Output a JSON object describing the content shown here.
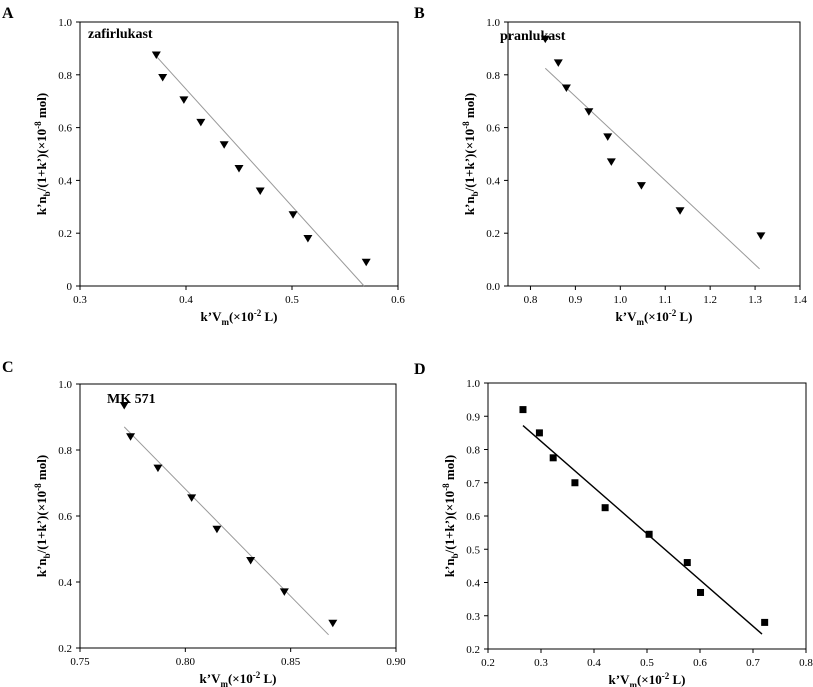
{
  "chart_data": [
    {
      "panel": "A",
      "type": "scatter",
      "title": "zafirlukast",
      "xlabel": "k’V",
      "xlabel_sub": "m",
      "xlabel_tail": "(×10",
      "xlabel_sup": "-2",
      "xlabel_end": " L)",
      "ylabel": "k’n",
      "ylabel_sub": "b",
      "ylabel_tail": "/(1+k’)(×10",
      "ylabel_sup": "-8",
      "ylabel_end": " mol)",
      "xlim": [
        0.3,
        0.6
      ],
      "ylim": [
        0.0,
        1.0
      ],
      "xticks": [
        "0.3",
        "0.4",
        "0.5",
        "0.6"
      ],
      "yticks": [
        "0",
        "0.2",
        "0.4",
        "0.6",
        "0.8",
        "1.0"
      ],
      "marker": "triangle-down",
      "fit_color": "#999999",
      "points": [
        {
          "x": 0.372,
          "y": 0.875
        },
        {
          "x": 0.378,
          "y": 0.79
        },
        {
          "x": 0.398,
          "y": 0.705
        },
        {
          "x": 0.414,
          "y": 0.62
        },
        {
          "x": 0.436,
          "y": 0.535
        },
        {
          "x": 0.45,
          "y": 0.445
        },
        {
          "x": 0.47,
          "y": 0.36
        },
        {
          "x": 0.501,
          "y": 0.27
        },
        {
          "x": 0.515,
          "y": 0.18
        },
        {
          "x": 0.57,
          "y": 0.09
        }
      ],
      "fit_line": [
        {
          "x": 0.372,
          "y": 0.87
        },
        {
          "x": 0.568,
          "y": 0.0
        }
      ]
    },
    {
      "panel": "B",
      "type": "scatter",
      "title": "pranlukast",
      "xlabel": "k’V",
      "xlabel_sub": "m",
      "xlabel_tail": "(×10",
      "xlabel_sup": "-2",
      "xlabel_end": " L)",
      "ylabel": "k’n",
      "ylabel_sub": "b",
      "ylabel_tail": "/(1+k’)(×10",
      "ylabel_sup": "-8",
      "ylabel_end": " mol)",
      "xlim": [
        0.75,
        1.4
      ],
      "ylim": [
        0.0,
        1.0
      ],
      "xticks": [
        "0.8",
        "0.9",
        "1.0",
        "1.1",
        "1.2",
        "1.3",
        "1.4"
      ],
      "yticks": [
        "0.0",
        "0.2",
        "0.4",
        "0.6",
        "0.8",
        "1.0"
      ],
      "marker": "triangle-down",
      "fit_color": "#999999",
      "points": [
        {
          "x": 0.833,
          "y": 0.935
        },
        {
          "x": 0.862,
          "y": 0.845
        },
        {
          "x": 0.88,
          "y": 0.75
        },
        {
          "x": 0.93,
          "y": 0.66
        },
        {
          "x": 0.972,
          "y": 0.565
        },
        {
          "x": 0.98,
          "y": 0.47
        },
        {
          "x": 1.047,
          "y": 0.38
        },
        {
          "x": 1.133,
          "y": 0.285
        },
        {
          "x": 1.313,
          "y": 0.19
        }
      ],
      "fit_line": [
        {
          "x": 0.833,
          "y": 0.825
        },
        {
          "x": 1.31,
          "y": 0.065
        }
      ]
    },
    {
      "panel": "C",
      "type": "scatter",
      "title": "MK 571",
      "xlabel": "k’V",
      "xlabel_sub": "m",
      "xlabel_tail": "(×10",
      "xlabel_sup": "-2",
      "xlabel_end": " L)",
      "ylabel": "k’n",
      "ylabel_sub": "b",
      "ylabel_tail": "/(1+k’)(×10",
      "ylabel_sup": "-8",
      "ylabel_end": " mol)",
      "xlim": [
        0.75,
        0.9
      ],
      "ylim": [
        0.2,
        1.0
      ],
      "xticks": [
        "0.75",
        "0.80",
        "0.85",
        "0.90"
      ],
      "yticks": [
        "0.2",
        "0.4",
        "0.6",
        "0.8",
        "1.0"
      ],
      "marker": "triangle-down",
      "fit_color": "#999999",
      "points": [
        {
          "x": 0.771,
          "y": 0.935
        },
        {
          "x": 0.774,
          "y": 0.84
        },
        {
          "x": 0.787,
          "y": 0.745
        },
        {
          "x": 0.803,
          "y": 0.655
        },
        {
          "x": 0.815,
          "y": 0.56
        },
        {
          "x": 0.831,
          "y": 0.465
        },
        {
          "x": 0.847,
          "y": 0.37
        },
        {
          "x": 0.87,
          "y": 0.275
        }
      ],
      "fit_line": [
        {
          "x": 0.771,
          "y": 0.87
        },
        {
          "x": 0.868,
          "y": 0.24
        }
      ]
    },
    {
      "panel": "D",
      "type": "scatter",
      "title": "",
      "xlabel": "k’V",
      "xlabel_sub": "m",
      "xlabel_tail": "(×10",
      "xlabel_sup": "-2",
      "xlabel_end": " L)",
      "ylabel": "k’n",
      "ylabel_sub": "b",
      "ylabel_tail": "/(1+k’)(×10",
      "ylabel_sup": "-8",
      "ylabel_end": " mol)",
      "xlim": [
        0.2,
        0.8
      ],
      "ylim": [
        0.2,
        1.0
      ],
      "xticks": [
        "0.2",
        "0.3",
        "0.4",
        "0.5",
        "0.6",
        "0.7",
        "0.8"
      ],
      "yticks": [
        "0.2",
        "0.3",
        "0.4",
        "0.5",
        "0.6",
        "0.7",
        "0.8",
        "0.9",
        "1.0"
      ],
      "marker": "square",
      "fit_color": "#000000",
      "points": [
        {
          "x": 0.266,
          "y": 0.92
        },
        {
          "x": 0.297,
          "y": 0.85
        },
        {
          "x": 0.323,
          "y": 0.775
        },
        {
          "x": 0.364,
          "y": 0.7
        },
        {
          "x": 0.421,
          "y": 0.625
        },
        {
          "x": 0.504,
          "y": 0.545
        },
        {
          "x": 0.576,
          "y": 0.46
        },
        {
          "x": 0.601,
          "y": 0.37
        },
        {
          "x": 0.722,
          "y": 0.28
        }
      ],
      "fit_line": [
        {
          "x": 0.266,
          "y": 0.872
        },
        {
          "x": 0.717,
          "y": 0.245
        }
      ]
    }
  ]
}
